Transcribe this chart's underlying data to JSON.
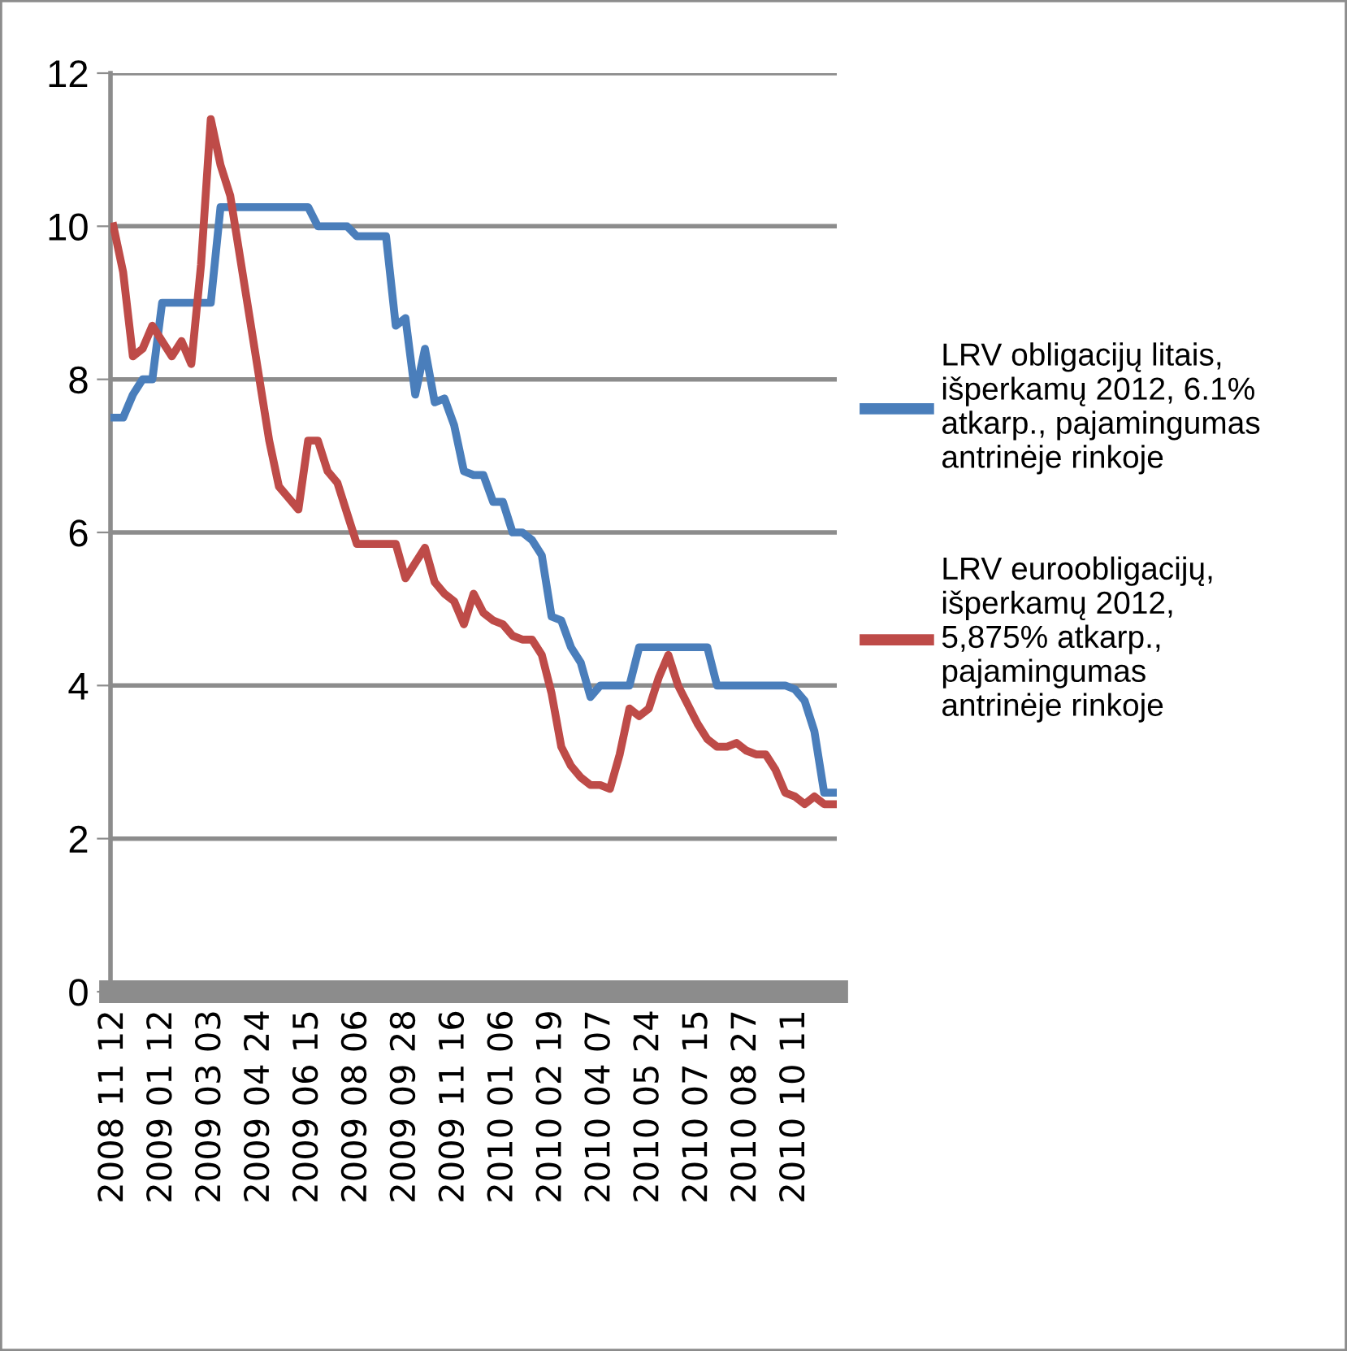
{
  "chart_data": {
    "type": "line",
    "categories": [
      "2008 11 12",
      null,
      null,
      null,
      null,
      "2009 01 12",
      null,
      null,
      null,
      null,
      "2009 03 03",
      null,
      null,
      null,
      null,
      "2009 04 24",
      null,
      null,
      null,
      null,
      "2009 06 15",
      null,
      null,
      null,
      null,
      "2009 08 06",
      null,
      null,
      null,
      null,
      "2009 09 28",
      null,
      null,
      null,
      null,
      "2009 11 16",
      null,
      null,
      null,
      null,
      "2010 01 06",
      null,
      null,
      null,
      null,
      "2010 02 19",
      null,
      null,
      null,
      null,
      "2010 04 07",
      null,
      null,
      null,
      null,
      "2010 05 24",
      null,
      null,
      null,
      null,
      "2010 07 15",
      null,
      null,
      null,
      null,
      "2010 08 27",
      null,
      null,
      null,
      null,
      "2010 10 11",
      null,
      null,
      null,
      null
    ],
    "series": [
      {
        "name": "LRV obligacijų litais,\nišperkamų 2012, 6.1%\natkarp., pajamingumas\nantrinėje rinkoje",
        "color": "#4a7ebb",
        "values": [
          7.5,
          7.5,
          7.8,
          8.0,
          8.0,
          9.0,
          9.0,
          9.0,
          9.0,
          9.0,
          9.0,
          10.25,
          10.25,
          10.25,
          10.25,
          10.25,
          10.25,
          10.25,
          10.25,
          10.25,
          10.25,
          10.0,
          10.0,
          10.0,
          10.0,
          9.87,
          9.87,
          9.87,
          9.87,
          8.7,
          8.8,
          7.8,
          8.4,
          7.7,
          7.75,
          7.4,
          6.8,
          6.75,
          6.75,
          6.4,
          6.4,
          6.0,
          6.0,
          5.9,
          5.7,
          4.9,
          4.85,
          4.5,
          4.3,
          3.85,
          4.0,
          4.0,
          4.0,
          4.0,
          4.5,
          4.5,
          4.5,
          4.5,
          4.5,
          4.5,
          4.5,
          4.5,
          4.0,
          4.0,
          4.0,
          4.0,
          4.0,
          4.0,
          4.0,
          4.0,
          3.95,
          3.8,
          3.4,
          2.6,
          2.6
        ]
      },
      {
        "name": "LRV euroobligacijų,\nišperkamų 2012,\n5,875% atkarp.,\npajamingumas\nantrinėje rinkoje",
        "color": "#be4b48",
        "values": [
          10.0,
          9.4,
          8.3,
          8.4,
          8.7,
          8.5,
          8.3,
          8.5,
          8.2,
          9.5,
          11.4,
          10.8,
          10.4,
          9.6,
          8.8,
          8.0,
          7.2,
          6.6,
          6.45,
          6.3,
          7.2,
          7.2,
          6.8,
          6.65,
          6.25,
          5.85,
          5.85,
          5.85,
          5.85,
          5.85,
          5.4,
          5.6,
          5.8,
          5.35,
          5.2,
          5.1,
          4.8,
          5.2,
          4.95,
          4.85,
          4.8,
          4.65,
          4.6,
          4.6,
          4.4,
          3.9,
          3.2,
          2.95,
          2.8,
          2.7,
          2.7,
          2.65,
          3.1,
          3.7,
          3.6,
          3.7,
          4.1,
          4.4,
          4.0,
          3.75,
          3.5,
          3.3,
          3.2,
          3.2,
          3.25,
          3.15,
          3.1,
          3.1,
          2.9,
          2.6,
          2.55,
          2.45,
          2.55,
          2.45,
          2.45
        ]
      }
    ],
    "ylim": [
      0,
      12
    ],
    "yticks": [
      0,
      2,
      4,
      6,
      8,
      10,
      12
    ],
    "grid": "y",
    "legend": "right",
    "marker": "none",
    "line_style": "solid"
  }
}
